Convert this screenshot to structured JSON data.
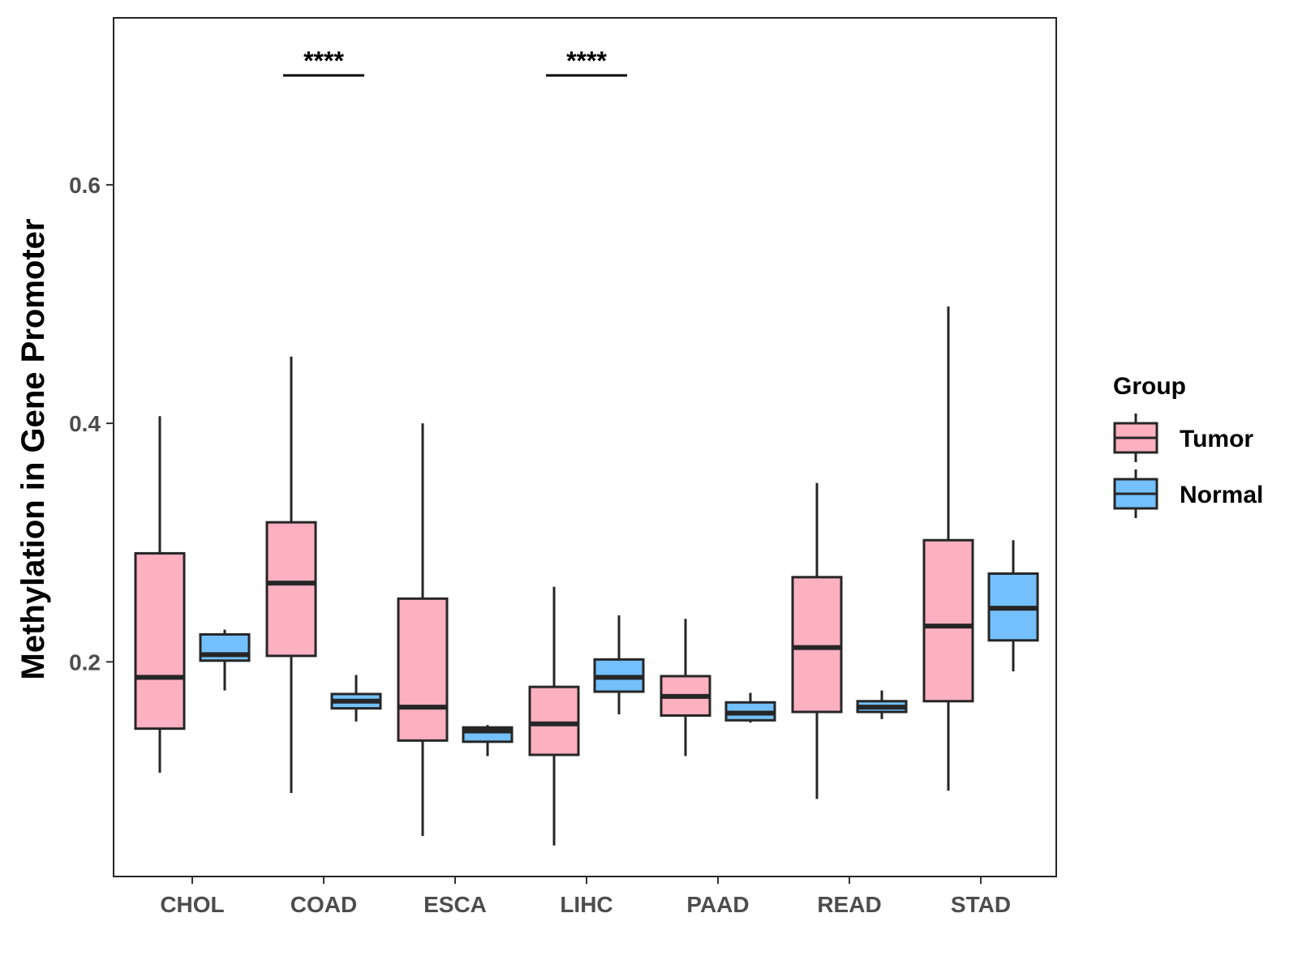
{
  "chart_data": {
    "type": "box",
    "title": "",
    "xlabel": "",
    "ylabel": "Methylation in Gene Promoter",
    "ylim": [
      0.02,
      0.74
    ],
    "yticks": [
      0.2,
      0.4,
      0.6
    ],
    "ytick_labels": [
      "0.2",
      "0.4",
      "0.6"
    ],
    "categories": [
      "CHOL",
      "COAD",
      "ESCA",
      "LIHC",
      "PAAD",
      "READ",
      "STAD"
    ],
    "legend": {
      "title": "Group",
      "position": "right",
      "entries": [
        "Tumor",
        "Normal"
      ]
    },
    "colors": {
      "Tumor": "#FDB0C0",
      "Normal": "#74C0FC",
      "outline": "#262626"
    },
    "series": [
      {
        "name": "Tumor",
        "boxes": [
          {
            "min": 0.107,
            "q1": 0.144,
            "median": 0.187,
            "q3": 0.291,
            "max": 0.406
          },
          {
            "min": 0.09,
            "q1": 0.205,
            "median": 0.266,
            "q3": 0.317,
            "max": 0.456
          },
          {
            "min": 0.054,
            "q1": 0.134,
            "median": 0.162,
            "q3": 0.253,
            "max": 0.4
          },
          {
            "min": 0.046,
            "q1": 0.122,
            "median": 0.148,
            "q3": 0.179,
            "max": 0.263
          },
          {
            "min": 0.121,
            "q1": 0.155,
            "median": 0.171,
            "q3": 0.188,
            "max": 0.236
          },
          {
            "min": 0.085,
            "q1": 0.158,
            "median": 0.212,
            "q3": 0.271,
            "max": 0.35
          },
          {
            "min": 0.092,
            "q1": 0.167,
            "median": 0.23,
            "q3": 0.302,
            "max": 0.498
          }
        ]
      },
      {
        "name": "Normal",
        "boxes": [
          {
            "min": 0.176,
            "q1": 0.201,
            "median": 0.206,
            "q3": 0.223,
            "max": 0.227
          },
          {
            "min": 0.15,
            "q1": 0.161,
            "median": 0.167,
            "q3": 0.173,
            "max": 0.189
          },
          {
            "min": 0.121,
            "q1": 0.133,
            "median": 0.142,
            "q3": 0.145,
            "max": 0.147
          },
          {
            "min": 0.156,
            "q1": 0.175,
            "median": 0.187,
            "q3": 0.202,
            "max": 0.239
          },
          {
            "min": 0.149,
            "q1": 0.151,
            "median": 0.157,
            "q3": 0.166,
            "max": 0.174
          },
          {
            "min": 0.152,
            "q1": 0.158,
            "median": 0.162,
            "q3": 0.167,
            "max": 0.176
          },
          {
            "min": 0.192,
            "q1": 0.218,
            "median": 0.245,
            "q3": 0.274,
            "max": 0.302
          }
        ]
      }
    ],
    "significance": [
      {
        "category": "COAD",
        "label": "****"
      },
      {
        "category": "LIHC",
        "label": "****"
      }
    ]
  }
}
